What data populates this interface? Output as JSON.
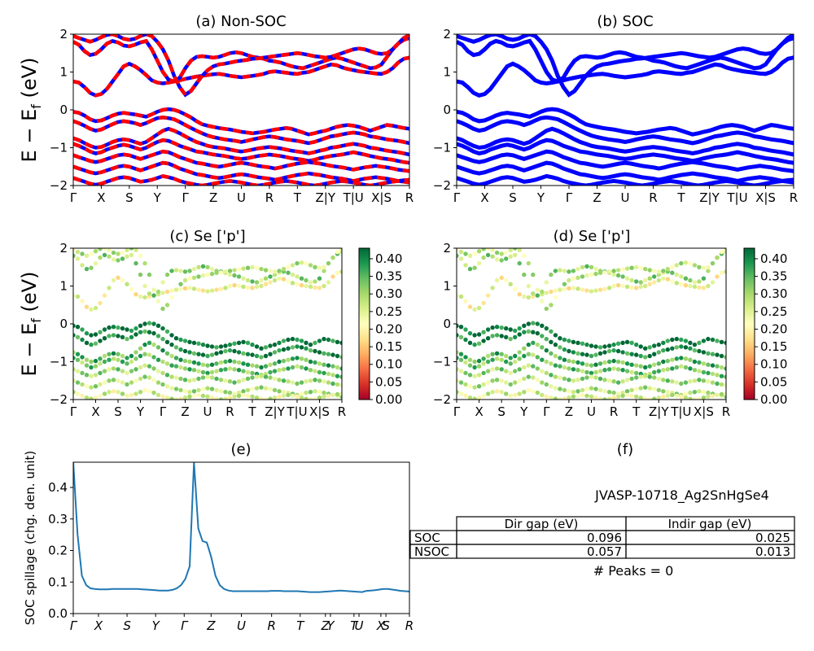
{
  "colors": {
    "nonsoc_a": "#ff0000",
    "nonsoc_b": "#0000ff",
    "soc": "#0000ff",
    "spillage": "#1f77b4",
    "colormap": [
      "#a50026",
      "#d73027",
      "#f46d43",
      "#fdae61",
      "#fee08b",
      "#ffffbf",
      "#d9ef8b",
      "#a6d96a",
      "#66bd63",
      "#1a9850",
      "#006837"
    ]
  },
  "ylabel": "E − E",
  "ylabel_sub": "f",
  "ylabel_unit": " (eV)",
  "kpath_labels": [
    "Γ",
    "X",
    "S",
    "Y",
    "Γ",
    "Z",
    "U",
    "R",
    "T",
    "Z|Y",
    "T|U",
    "X|S",
    "R"
  ],
  "panels": {
    "a": {
      "title": "(a) Non-SOC"
    },
    "b": {
      "title": "(b) SOC"
    },
    "c": {
      "title": "(c)  Se ['p']"
    },
    "d": {
      "title": "(d) Se ['p']"
    },
    "e": {
      "title": "(e)",
      "ylabel": "SOC spillage (chg. den. unit)"
    },
    "f": {
      "title": "(f)",
      "material": "JVASP-10718_Ag2SnHgSe4",
      "peaks": "# Peaks = 0"
    }
  },
  "table": {
    "headers": [
      "",
      "Dir gap (eV)",
      "Indir gap (eV)"
    ],
    "rows": [
      {
        "label": "SOC",
        "dir": "0.096",
        "indir": "0.025"
      },
      {
        "label": "NSOC",
        "dir": "0.057",
        "indir": "0.013"
      }
    ]
  },
  "chart_data": [
    {
      "type": "line",
      "title": "(a) Non-SOC",
      "ylabel": "E − E_f (eV)",
      "ylim": [
        -2,
        2
      ],
      "yticks": [
        -2,
        -1,
        0,
        1,
        2
      ],
      "xticks": [
        "Γ",
        "X",
        "S",
        "Y",
        "Γ",
        "Z",
        "U",
        "R",
        "T",
        "Z|Y",
        "T|U",
        "X|S",
        "R"
      ],
      "series": [
        {
          "values": [
            0.75,
            0.72,
            0.6,
            0.45,
            0.38,
            0.42,
            0.55,
            0.75,
            0.95,
            1.15,
            1.22,
            1.15,
            1.05,
            0.92,
            0.78,
            0.72,
            0.7,
            0.72,
            0.75,
            0.78,
            0.82,
            0.85,
            0.88,
            0.9,
            0.92,
            0.94,
            0.95,
            0.93,
            0.9,
            0.88,
            0.86,
            0.88,
            0.9,
            0.92,
            0.95,
            1.0,
            1.02,
            1.0,
            0.98,
            0.96,
            0.95,
            0.98,
            1.0,
            1.05,
            1.1,
            1.15,
            1.2,
            1.18,
            1.12,
            1.08,
            1.05,
            1.02,
            1.0,
            0.98,
            0.96,
            0.95,
            1.0,
            1.1,
            1.25,
            1.35,
            1.38
          ]
        },
        {
          "values": [
            1.8,
            1.72,
            1.55,
            1.45,
            1.48,
            1.6,
            1.75,
            1.82,
            1.78,
            1.7,
            1.68,
            1.72,
            1.78,
            1.82,
            1.6,
            1.3,
            1.0,
            0.8,
            0.75,
            0.85,
            1.1,
            1.3,
            1.4,
            1.42,
            1.4,
            1.38,
            1.4,
            1.45,
            1.5,
            1.52,
            1.5,
            1.45,
            1.4,
            1.38,
            1.35,
            1.3,
            1.28,
            1.25,
            1.2,
            1.15,
            1.12,
            1.1,
            1.15,
            1.2,
            1.25,
            1.3,
            1.35,
            1.38,
            1.35,
            1.3,
            1.25,
            1.2,
            1.15,
            1.1,
            1.12,
            1.2,
            1.4,
            1.6,
            1.75,
            1.85,
            1.9
          ]
        },
        {
          "values": [
            1.95,
            1.9,
            1.85,
            1.8,
            1.85,
            1.92,
            1.98,
            2.0,
            1.95,
            1.88,
            1.85,
            1.88,
            1.95,
            2.0,
            1.95,
            1.8,
            1.6,
            1.3,
            0.9,
            0.6,
            0.4,
            0.5,
            0.7,
            0.9,
            1.05,
            1.15,
            1.2,
            1.22,
            1.25,
            1.28,
            1.3,
            1.32,
            1.35,
            1.36,
            1.38,
            1.4,
            1.42,
            1.44,
            1.46,
            1.48,
            1.5,
            1.48,
            1.45,
            1.42,
            1.4,
            1.38,
            1.4,
            1.45,
            1.5,
            1.55,
            1.6,
            1.62,
            1.6,
            1.55,
            1.5,
            1.48,
            1.5,
            1.6,
            1.75,
            1.9,
            1.98
          ]
        },
        {
          "values": [
            -0.05,
            -0.08,
            -0.15,
            -0.25,
            -0.3,
            -0.28,
            -0.22,
            -0.15,
            -0.1,
            -0.08,
            -0.1,
            -0.12,
            -0.15,
            -0.18,
            -0.12,
            -0.05,
            0.0,
            0.02,
            0.0,
            -0.05,
            -0.12,
            -0.2,
            -0.3,
            -0.38,
            -0.42,
            -0.45,
            -0.48,
            -0.5,
            -0.52,
            -0.55,
            -0.58,
            -0.6,
            -0.62,
            -0.6,
            -0.58,
            -0.55,
            -0.52,
            -0.5,
            -0.48,
            -0.5,
            -0.55,
            -0.6,
            -0.65,
            -0.62,
            -0.58,
            -0.55,
            -0.5,
            -0.45,
            -0.42,
            -0.4,
            -0.42,
            -0.45,
            -0.5,
            -0.55,
            -0.5,
            -0.45,
            -0.4,
            -0.42,
            -0.45,
            -0.48,
            -0.5
          ]
        },
        {
          "values": [
            -0.3,
            -0.35,
            -0.42,
            -0.5,
            -0.55,
            -0.52,
            -0.45,
            -0.38,
            -0.32,
            -0.3,
            -0.32,
            -0.35,
            -0.4,
            -0.35,
            -0.28,
            -0.22,
            -0.2,
            -0.22,
            -0.25,
            -0.32,
            -0.4,
            -0.48,
            -0.55,
            -0.62,
            -0.68,
            -0.72,
            -0.75,
            -0.78,
            -0.8,
            -0.82,
            -0.85,
            -0.82,
            -0.78,
            -0.75,
            -0.72,
            -0.7,
            -0.72,
            -0.75,
            -0.78,
            -0.8,
            -0.82,
            -0.85,
            -0.88,
            -0.85,
            -0.8,
            -0.75,
            -0.7,
            -0.68,
            -0.65,
            -0.62,
            -0.6,
            -0.62,
            -0.65,
            -0.7,
            -0.72,
            -0.75,
            -0.78,
            -0.8,
            -0.82,
            -0.85,
            -0.88
          ]
        },
        {
          "values": [
            -0.75,
            -0.8,
            -0.88,
            -0.95,
            -1.0,
            -0.98,
            -0.92,
            -0.85,
            -0.8,
            -0.78,
            -0.8,
            -0.85,
            -0.9,
            -0.85,
            -0.75,
            -0.65,
            -0.55,
            -0.5,
            -0.55,
            -0.62,
            -0.7,
            -0.78,
            -0.85,
            -0.9,
            -0.95,
            -0.98,
            -1.0,
            -1.02,
            -1.05,
            -1.08,
            -1.1,
            -1.08,
            -1.05,
            -1.02,
            -1.0,
            -0.98,
            -1.0,
            -1.02,
            -1.05,
            -1.08,
            -1.1,
            -1.12,
            -1.15,
            -1.12,
            -1.08,
            -1.05,
            -1.0,
            -0.98,
            -0.95,
            -0.92,
            -0.9,
            -0.92,
            -0.95,
            -1.0,
            -1.02,
            -1.05,
            -1.08,
            -1.1,
            -1.12,
            -1.15,
            -1.18
          ]
        },
        {
          "values": [
            -0.9,
            -0.95,
            -1.02,
            -1.1,
            -1.15,
            -1.12,
            -1.05,
            -1.0,
            -0.95,
            -0.92,
            -0.95,
            -1.0,
            -1.05,
            -1.0,
            -0.92,
            -0.85,
            -0.8,
            -0.82,
            -0.88,
            -0.95,
            -1.0,
            -1.05,
            -1.1,
            -1.12,
            -1.15,
            -1.18,
            -1.2,
            -1.22,
            -1.25,
            -1.28,
            -1.3,
            -1.28,
            -1.25,
            -1.22,
            -1.2,
            -1.18,
            -1.2,
            -1.22,
            -1.25,
            -1.28,
            -1.3,
            -1.32,
            -1.35,
            -1.32,
            -1.28,
            -1.25,
            -1.22,
            -1.2,
            -1.18,
            -1.15,
            -1.12,
            -1.15,
            -1.18,
            -1.22,
            -1.25,
            -1.28,
            -1.3,
            -1.32,
            -1.35,
            -1.38,
            -1.4
          ]
        },
        {
          "values": [
            -1.2,
            -1.25,
            -1.3,
            -1.35,
            -1.38,
            -1.35,
            -1.3,
            -1.25,
            -1.2,
            -1.18,
            -1.2,
            -1.25,
            -1.3,
            -1.25,
            -1.2,
            -1.15,
            -1.1,
            -1.12,
            -1.18,
            -1.25,
            -1.3,
            -1.35,
            -1.4,
            -1.42,
            -1.45,
            -1.48,
            -1.5,
            -1.48,
            -1.45,
            -1.42,
            -1.4,
            -1.42,
            -1.45,
            -1.48,
            -1.5,
            -1.52,
            -1.55,
            -1.52,
            -1.48,
            -1.45,
            -1.42,
            -1.4,
            -1.38,
            -1.4,
            -1.42,
            -1.45,
            -1.48,
            -1.5,
            -1.52,
            -1.55,
            -1.58,
            -1.55,
            -1.52,
            -1.5,
            -1.48,
            -1.5,
            -1.52,
            -1.55,
            -1.58,
            -1.6,
            -1.62
          ]
        },
        {
          "values": [
            -1.5,
            -1.55,
            -1.6,
            -1.65,
            -1.68,
            -1.65,
            -1.6,
            -1.55,
            -1.5,
            -1.48,
            -1.5,
            -1.55,
            -1.6,
            -1.55,
            -1.5,
            -1.45,
            -1.4,
            -1.42,
            -1.48,
            -1.55,
            -1.6,
            -1.65,
            -1.7,
            -1.72,
            -1.75,
            -1.78,
            -1.8,
            -1.78,
            -1.75,
            -1.72,
            -1.7,
            -1.72,
            -1.75,
            -1.78,
            -1.8,
            -1.82,
            -1.85,
            -1.82,
            -1.78,
            -1.75,
            -1.72,
            -1.7,
            -1.68,
            -1.7,
            -1.72,
            -1.75,
            -1.78,
            -1.8,
            -1.82,
            -1.85,
            -1.88,
            -1.85,
            -1.82,
            -1.8,
            -1.78,
            -1.8,
            -1.82,
            -1.85,
            -1.88,
            -1.9,
            -1.92
          ]
        },
        {
          "values": [
            -1.8,
            -1.85,
            -1.9,
            -1.95,
            -1.98,
            -1.95,
            -1.9,
            -1.85,
            -1.8,
            -1.78,
            -1.8,
            -1.85,
            -1.9,
            -1.88,
            -1.85,
            -1.8,
            -1.75,
            -1.78,
            -1.82,
            -1.88,
            -1.92,
            -1.95,
            -1.98,
            -2.0,
            -1.98,
            -1.95,
            -1.92,
            -1.9,
            -1.88,
            -1.9,
            -1.92,
            -1.95,
            -1.98,
            -2.0,
            -1.98,
            -1.95,
            -1.92,
            -1.9,
            -1.88,
            -1.9,
            -1.92,
            -1.95,
            -1.98,
            -2.0,
            -1.98,
            -1.95,
            -1.92,
            -1.9,
            -1.88,
            -1.9,
            -1.92,
            -1.95,
            -1.98,
            -2.0,
            -1.98,
            -1.95,
            -1.92,
            -1.9,
            -1.88,
            -1.86,
            -1.85
          ]
        }
      ]
    },
    {
      "type": "line",
      "title": "(b) SOC",
      "ylim": [
        -2,
        2
      ],
      "yticks": [
        -2,
        -1,
        0,
        1,
        2
      ],
      "xticks": [
        "Γ",
        "X",
        "S",
        "Y",
        "Γ",
        "Z",
        "U",
        "R",
        "T",
        "Z|Y",
        "T|U",
        "X|S",
        "R"
      ],
      "note": "same band structure as (a), drawn in blue"
    },
    {
      "type": "scatter",
      "title": "(c)  Se ['p']",
      "ylabel": "E − E_f (eV)",
      "ylim": [
        -2,
        2
      ],
      "yticks": [
        -2,
        -1,
        0,
        1,
        2
      ],
      "xticks": [
        "Γ",
        "X",
        "S",
        "Y",
        "Γ",
        "Z",
        "U",
        "R",
        "T",
        "Z|Y",
        "T|U",
        "X|S",
        "R"
      ],
      "colorbar": {
        "ticks": [
          0.0,
          0.05,
          0.1,
          0.15,
          0.2,
          0.25,
          0.3,
          0.35,
          0.4
        ],
        "range": [
          0.0,
          0.43
        ]
      },
      "color_by_band": [
        0.22,
        0.3,
        0.27,
        0.42,
        0.4,
        0.35,
        0.33,
        0.3,
        0.28,
        0.25
      ]
    },
    {
      "type": "scatter",
      "title": "(d) Se ['p']",
      "ylim": [
        -2,
        2
      ],
      "yticks": [
        -2,
        -1,
        0,
        1,
        2
      ],
      "xticks": [
        "Γ",
        "X",
        "S",
        "Y",
        "Γ",
        "Z",
        "U",
        "R",
        "T",
        "Z|Y",
        "T|U",
        "X|S",
        "R"
      ],
      "colorbar": {
        "ticks": [
          0.0,
          0.05,
          0.1,
          0.15,
          0.2,
          0.25,
          0.3,
          0.35,
          0.4
        ],
        "range": [
          0.0,
          0.43
        ]
      },
      "color_by_band": [
        0.22,
        0.3,
        0.27,
        0.42,
        0.4,
        0.35,
        0.33,
        0.3,
        0.28,
        0.25
      ]
    },
    {
      "type": "line",
      "title": "(e)",
      "ylabel": "SOC spillage (chg. den. unit)",
      "ylim": [
        0,
        0.48
      ],
      "yticks": [
        0.0,
        0.1,
        0.2,
        0.3,
        0.4
      ],
      "xticks": [
        "Γ",
        "X",
        "S",
        "Y",
        "Γ",
        "Z",
        "U",
        "R",
        "T",
        "Z",
        "Y",
        "T",
        "U",
        "X",
        "S",
        "R"
      ],
      "values": [
        0.48,
        0.25,
        0.12,
        0.09,
        0.08,
        0.078,
        0.077,
        0.077,
        0.077,
        0.078,
        0.078,
        0.078,
        0.078,
        0.078,
        0.078,
        0.078,
        0.077,
        0.076,
        0.075,
        0.074,
        0.073,
        0.073,
        0.073,
        0.075,
        0.08,
        0.09,
        0.11,
        0.15,
        0.48,
        0.27,
        0.23,
        0.225,
        0.18,
        0.12,
        0.09,
        0.078,
        0.073,
        0.071,
        0.071,
        0.071,
        0.071,
        0.071,
        0.071,
        0.071,
        0.071,
        0.071,
        0.072,
        0.072,
        0.072,
        0.071,
        0.071,
        0.071,
        0.071,
        0.07,
        0.069,
        0.068,
        0.068,
        0.068,
        0.069,
        0.07,
        0.071,
        0.072,
        0.073,
        0.072,
        0.071,
        0.07,
        0.069,
        0.068,
        0.072,
        0.073,
        0.074,
        0.076,
        0.078,
        0.078,
        0.076,
        0.074,
        0.072,
        0.071,
        0.07
      ]
    }
  ]
}
